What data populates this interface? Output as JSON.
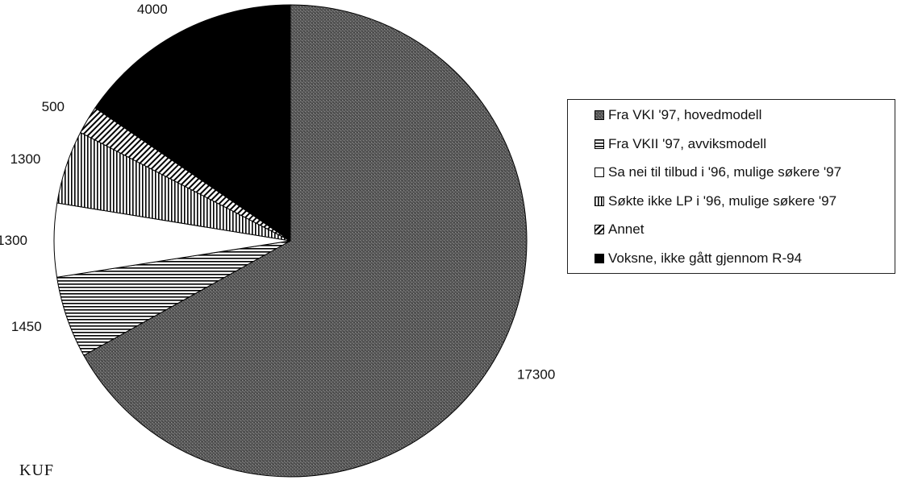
{
  "chart_data": {
    "type": "pie",
    "slices": [
      {
        "label": "Fra VKI '97, hovedmodell",
        "value": 17300,
        "data_label": "17300",
        "fill": "gray-stipple",
        "color": "#555555"
      },
      {
        "label": "Fra VKII '97, avviksmodell",
        "value": 1450,
        "data_label": "1450",
        "fill": "horizontal-lines",
        "color": "#ffffff"
      },
      {
        "label": "Sa nei til tilbud i '96, mulige søkere '97",
        "value": 1300,
        "data_label": "1300",
        "fill": "white",
        "color": "#ffffff"
      },
      {
        "label": "Søkte ikke LP i '96, mulige søkere '97",
        "value": 1300,
        "data_label": "1300",
        "fill": "vertical-lines",
        "color": "#ffffff"
      },
      {
        "label": "Annet",
        "value": 500,
        "data_label": "500",
        "fill": "diagonal-lines",
        "color": "#ffffff"
      },
      {
        "label": "Voksne, ikke gått gjennom R-94",
        "value": 4000,
        "data_label": "4000",
        "fill": "black",
        "color": "#000000"
      }
    ],
    "start_angle": "12 o'clock",
    "direction": "clockwise",
    "legend_placement": "right"
  },
  "footer": {
    "source": "KUF"
  }
}
